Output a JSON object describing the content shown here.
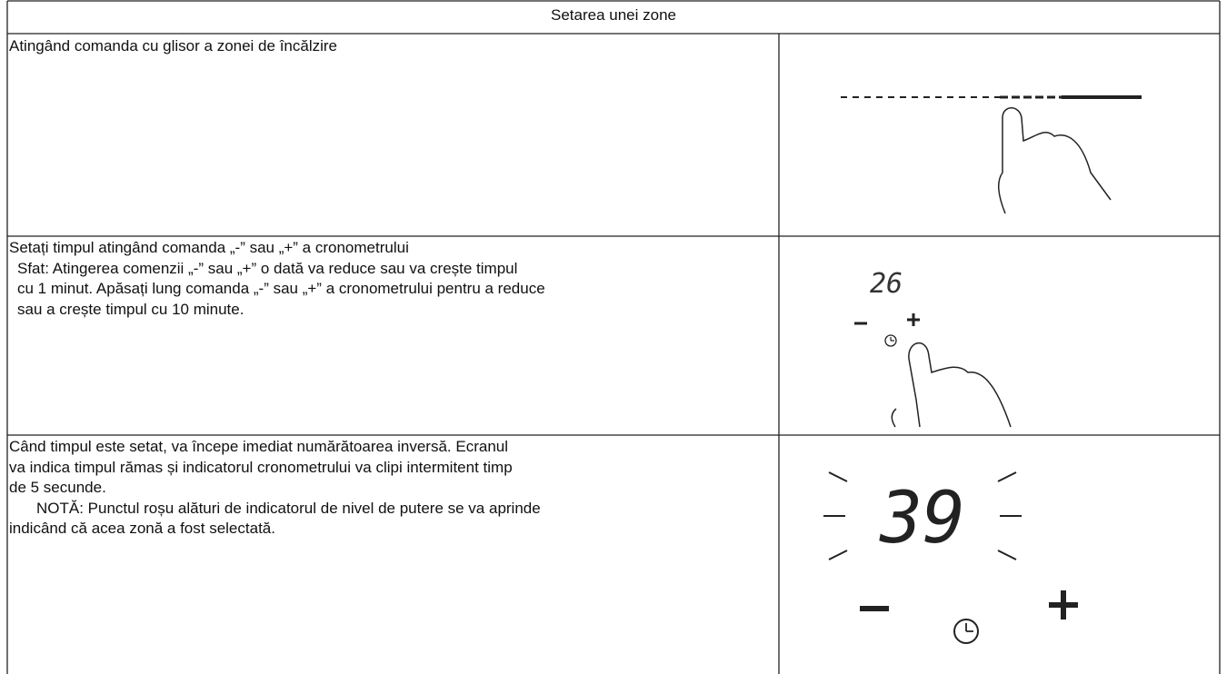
{
  "table": {
    "title": "Setarea unei zone",
    "rows": [
      {
        "text": [
          "Atingând comanda cu glisor a zonei de încălzire"
        ]
      },
      {
        "text": [
          "Setați timpul atingând comanda „-” sau „+” a cronometrului",
          "Sfat: Atingerea comenzii „-” sau „+” o dată va reduce sau va crește timpul",
          "cu 1 minut. Apăsați lung comanda „-” sau „+” a cronometrului pentru a reduce",
          "sau a crește timpul cu 10 minute."
        ],
        "display": "26"
      },
      {
        "text": [
          "Când timpul este setat, va începe imediat numărătoarea inversă. Ecranul",
          "va indica timpul rămas și indicatorul cronometrului va clipi intermitent timp",
          "de 5 secunde.",
          "NOTĂ: Punctul roșu alături de indicatorul de nivel de putere se va aprinde",
          "indicând că acea zonă a fost selectată."
        ],
        "display": "39"
      }
    ]
  }
}
